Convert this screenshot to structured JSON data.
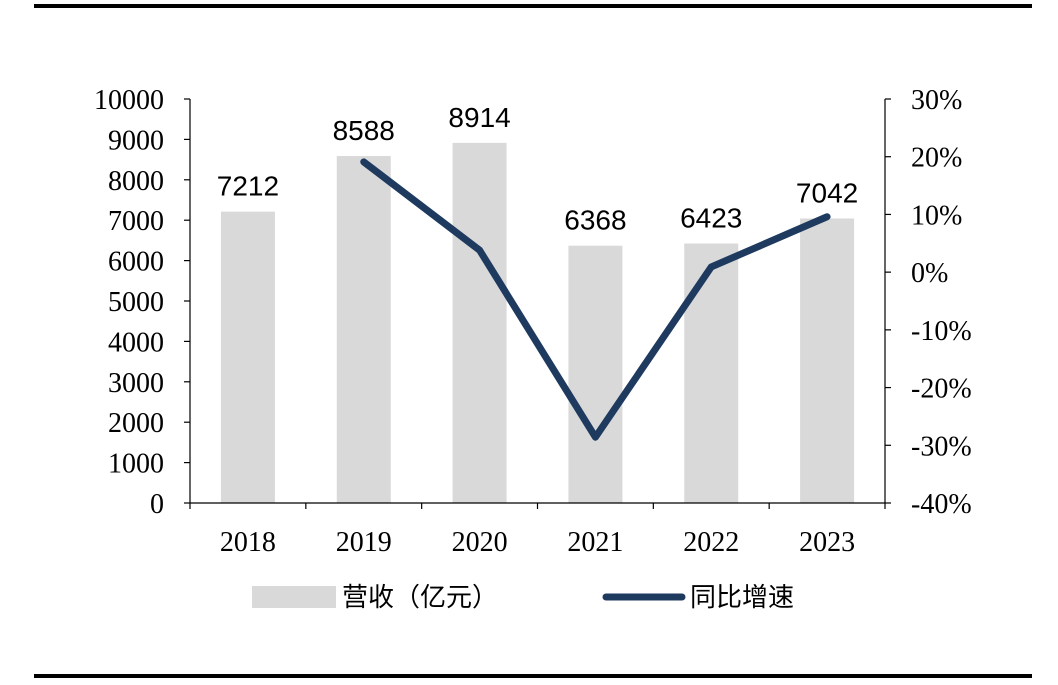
{
  "chart_data": {
    "type": "bar",
    "categories": [
      "2018",
      "2019",
      "2020",
      "2021",
      "2022",
      "2023"
    ],
    "series": [
      {
        "name": "营收（亿元）",
        "type": "bar",
        "axis": "left",
        "color": "#d9d9d9",
        "values": [
          7212,
          8588,
          8914,
          6368,
          6423,
          7042
        ]
      },
      {
        "name": "同比增速",
        "type": "line",
        "axis": "right",
        "color": "#1f3a5f",
        "values": [
          null,
          19.1,
          3.8,
          -28.6,
          0.9,
          9.6
        ]
      }
    ],
    "y_left": {
      "min": 0,
      "max": 10000,
      "step": 1000,
      "ticks": [
        "0",
        "1000",
        "2000",
        "3000",
        "4000",
        "5000",
        "6000",
        "7000",
        "8000",
        "9000",
        "10000"
      ]
    },
    "y_right": {
      "min": -40,
      "max": 30,
      "step": 10,
      "ticks": [
        "-40%",
        "-30%",
        "-20%",
        "-10%",
        "0%",
        "10%",
        "20%",
        "30%"
      ]
    },
    "data_labels": [
      "7212",
      "8588",
      "8914",
      "6368",
      "6423",
      "7042"
    ],
    "legend": {
      "position": "bottom",
      "items": [
        {
          "label": "营收（亿元）",
          "kind": "bar"
        },
        {
          "label": "同比增速",
          "kind": "line"
        }
      ]
    },
    "grid": false
  }
}
